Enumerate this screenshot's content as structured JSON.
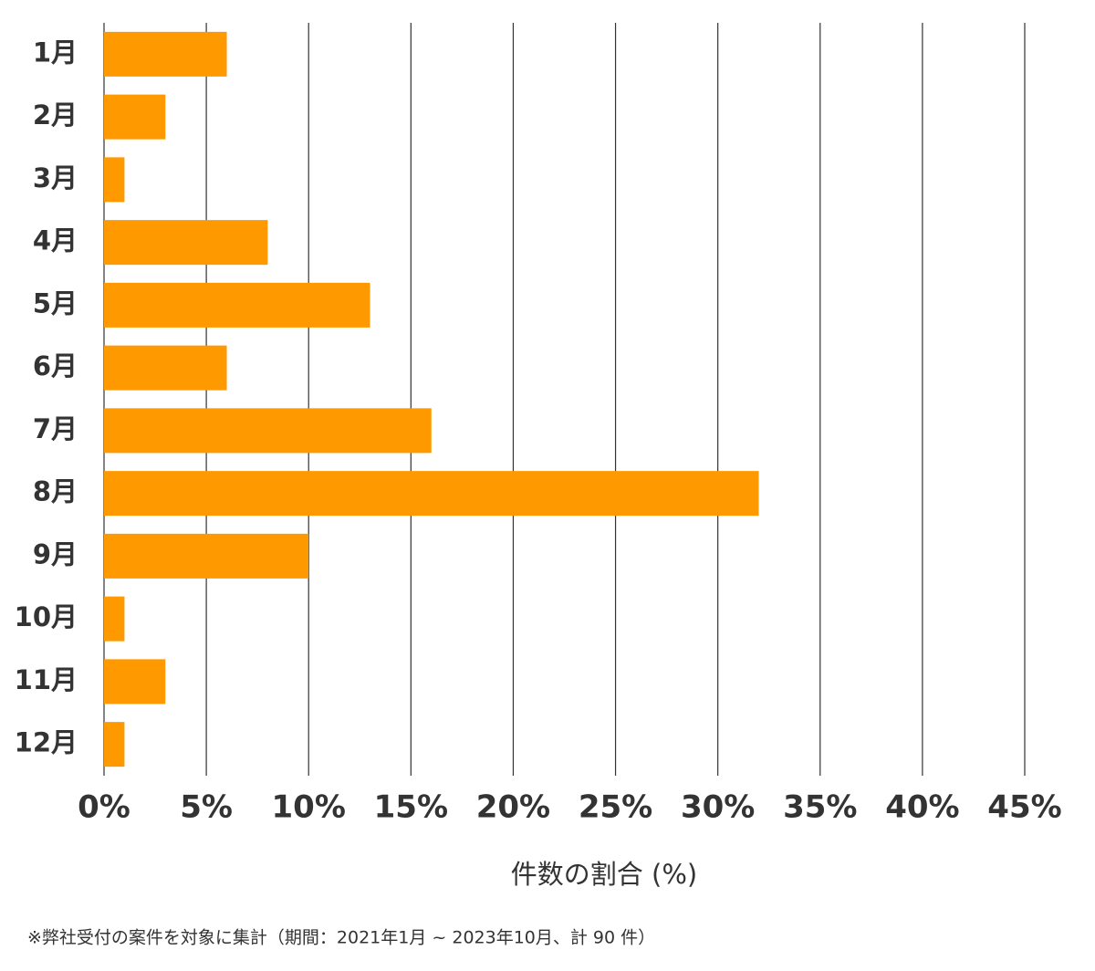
{
  "chart_data": {
    "type": "hbar",
    "categories": [
      "1月",
      "2月",
      "3月",
      "4月",
      "5月",
      "6月",
      "7月",
      "8月",
      "9月",
      "10月",
      "11月",
      "12月"
    ],
    "values": [
      6,
      3,
      1,
      8,
      13,
      6,
      16,
      32,
      10,
      1,
      3,
      1
    ],
    "color": "#ff9900",
    "xlim": [
      0,
      45
    ],
    "xticks": [
      {
        "value": 0,
        "label": "0%"
      },
      {
        "value": 5,
        "label": "5%"
      },
      {
        "value": 10,
        "label": "10%"
      },
      {
        "value": 15,
        "label": "15%"
      },
      {
        "value": 20,
        "label": "20%"
      },
      {
        "value": 25,
        "label": "25%"
      },
      {
        "value": 30,
        "label": "30%"
      },
      {
        "value": 35,
        "label": "35%"
      },
      {
        "value": 40,
        "label": "40%"
      },
      {
        "value": 45,
        "label": "45%"
      }
    ],
    "grid": true,
    "xlabel": "件数の割合 (%)",
    "note": "※弊社受付の案件を対象に集計（期間：2021年1月 ~ 2023年10月、計 90 件）"
  }
}
